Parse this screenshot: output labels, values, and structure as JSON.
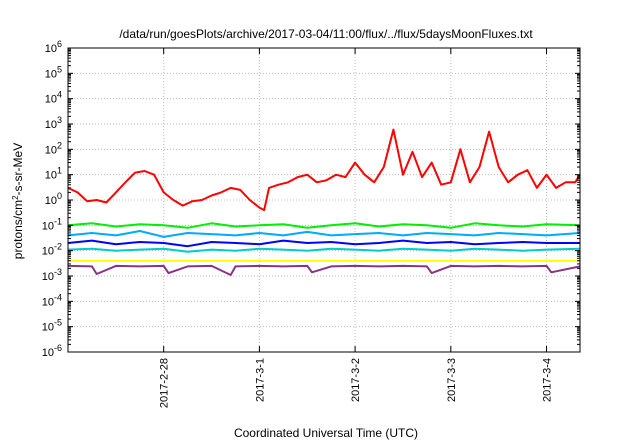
{
  "chart_data": {
    "type": "line",
    "title": "/data/run/goesPlots/archive/2017-03-04/11:00/flux/../flux/5daysMoonFluxes.txt",
    "xlabel": "Coordinated Universal Time (UTC)",
    "ylabel": "protons/cm²-s-sr-MeV",
    "yscale": "log",
    "ylim": [
      1e-06,
      1000000.0
    ],
    "xlim": [
      0.0,
      5.35
    ],
    "x_unit": "days since 2017-02-27 00:00 UTC",
    "grid": true,
    "legend": "none",
    "x_ticks": [
      {
        "x": 1,
        "label": "2017-2-28"
      },
      {
        "x": 2,
        "label": "2017-3-1"
      },
      {
        "x": 3,
        "label": "2017-3-2"
      },
      {
        "x": 4,
        "label": "2017-3-3"
      },
      {
        "x": 5,
        "label": "2017-3-4"
      }
    ],
    "y_ticks": [
      {
        "exp": -6,
        "base": "10",
        "sup": "-6"
      },
      {
        "exp": -5,
        "base": "10",
        "sup": "-5"
      },
      {
        "exp": -4,
        "base": "10",
        "sup": "-4"
      },
      {
        "exp": -3,
        "base": "10",
        "sup": "-3"
      },
      {
        "exp": -2,
        "base": "10",
        "sup": "-2"
      },
      {
        "exp": -1,
        "base": "10",
        "sup": "-1"
      },
      {
        "exp": 0,
        "base": "10",
        "sup": "0"
      },
      {
        "exp": 1,
        "base": "10",
        "sup": "1"
      },
      {
        "exp": 2,
        "base": "10",
        "sup": "2"
      },
      {
        "exp": 3,
        "base": "10",
        "sup": "3"
      },
      {
        "exp": 4,
        "base": "10",
        "sup": "4"
      },
      {
        "exp": 5,
        "base": "10",
        "sup": "5"
      },
      {
        "exp": 6,
        "base": "10",
        "sup": "6"
      }
    ],
    "series": [
      {
        "color": "#ff0000",
        "x": [
          0.0,
          0.1,
          0.2,
          0.3,
          0.4,
          0.5,
          0.6,
          0.7,
          0.8,
          0.9,
          1.0,
          1.1,
          1.2,
          1.3,
          1.4,
          1.5,
          1.6,
          1.7,
          1.8,
          1.9,
          2.0,
          2.05,
          2.1,
          2.2,
          2.3,
          2.4,
          2.5,
          2.6,
          2.7,
          2.8,
          2.9,
          3.0,
          3.1,
          3.2,
          3.3,
          3.4,
          3.5,
          3.6,
          3.7,
          3.8,
          3.9,
          4.0,
          4.1,
          4.2,
          4.3,
          4.4,
          4.5,
          4.6,
          4.7,
          4.8,
          4.9,
          5.0,
          5.1,
          5.2,
          5.3,
          5.35
        ],
        "y": [
          3,
          2,
          0.9,
          1,
          0.8,
          2,
          5,
          12,
          14,
          10,
          2,
          1,
          0.6,
          0.9,
          1,
          1.5,
          2,
          3,
          2.5,
          1,
          0.5,
          0.4,
          3,
          4,
          5,
          8,
          10,
          5,
          6,
          10,
          8,
          30,
          10,
          5,
          20,
          600,
          10,
          80,
          8,
          30,
          4,
          5,
          100,
          5,
          20,
          500,
          20,
          5,
          10,
          15,
          3,
          10,
          3,
          5,
          5,
          10
        ]
      },
      {
        "color": "#00ee00",
        "x": [
          0.0,
          0.25,
          0.5,
          0.75,
          1.0,
          1.25,
          1.5,
          1.75,
          2.0,
          2.25,
          2.5,
          2.75,
          3.0,
          3.25,
          3.5,
          3.75,
          4.0,
          4.25,
          4.5,
          4.75,
          5.0,
          5.35
        ],
        "y": [
          0.1,
          0.12,
          0.09,
          0.11,
          0.1,
          0.08,
          0.12,
          0.09,
          0.1,
          0.11,
          0.08,
          0.1,
          0.12,
          0.09,
          0.11,
          0.1,
          0.08,
          0.12,
          0.1,
          0.09,
          0.11,
          0.1
        ]
      },
      {
        "color": "#00aaff",
        "x": [
          0.0,
          0.25,
          0.5,
          0.75,
          1.0,
          1.25,
          1.5,
          1.75,
          2.0,
          2.25,
          2.5,
          2.75,
          3.0,
          3.25,
          3.5,
          3.75,
          4.0,
          4.25,
          4.5,
          4.75,
          5.0,
          5.35
        ],
        "y": [
          0.04,
          0.05,
          0.04,
          0.06,
          0.035,
          0.05,
          0.045,
          0.04,
          0.05,
          0.04,
          0.055,
          0.04,
          0.045,
          0.05,
          0.04,
          0.05,
          0.045,
          0.04,
          0.05,
          0.045,
          0.04,
          0.05
        ]
      },
      {
        "color": "#0000ff",
        "x": [
          0.0,
          0.25,
          0.5,
          0.75,
          1.0,
          1.25,
          1.5,
          1.75,
          2.0,
          2.25,
          2.5,
          2.75,
          3.0,
          3.25,
          3.5,
          3.75,
          4.0,
          4.25,
          4.5,
          4.75,
          5.0,
          5.35
        ],
        "y": [
          0.02,
          0.025,
          0.018,
          0.022,
          0.02,
          0.015,
          0.022,
          0.02,
          0.018,
          0.025,
          0.02,
          0.022,
          0.018,
          0.02,
          0.025,
          0.02,
          0.022,
          0.018,
          0.02,
          0.022,
          0.02,
          0.02
        ]
      },
      {
        "color": "#00cccc",
        "x": [
          0.0,
          0.25,
          0.5,
          0.75,
          1.0,
          1.25,
          1.5,
          1.75,
          2.0,
          2.25,
          2.5,
          2.75,
          3.0,
          3.25,
          3.5,
          3.75,
          4.0,
          4.25,
          4.5,
          4.75,
          5.0,
          5.35
        ],
        "y": [
          0.011,
          0.012,
          0.01,
          0.011,
          0.012,
          0.009,
          0.011,
          0.01,
          0.012,
          0.011,
          0.01,
          0.012,
          0.011,
          0.01,
          0.012,
          0.011,
          0.01,
          0.012,
          0.011,
          0.01,
          0.011,
          0.012
        ]
      },
      {
        "color": "#ffff00",
        "x": [
          0.0,
          0.5,
          1.0,
          1.5,
          2.0,
          2.5,
          3.0,
          3.5,
          4.0,
          4.5,
          5.0,
          5.35
        ],
        "y": [
          0.004,
          0.004,
          0.004,
          0.004,
          0.004,
          0.004,
          0.004,
          0.004,
          0.004,
          0.004,
          0.004,
          0.004
        ]
      },
      {
        "color": "#883388",
        "x": [
          0.0,
          0.25,
          0.3,
          0.5,
          0.75,
          1.0,
          1.05,
          1.25,
          1.5,
          1.7,
          1.75,
          2.0,
          2.25,
          2.5,
          2.55,
          2.75,
          3.0,
          3.25,
          3.5,
          3.75,
          3.8,
          4.0,
          4.25,
          4.5,
          4.75,
          5.0,
          5.05,
          5.35
        ],
        "y": [
          0.0025,
          0.0024,
          0.0012,
          0.0025,
          0.0024,
          0.0025,
          0.0013,
          0.0024,
          0.0025,
          0.0011,
          0.0024,
          0.0025,
          0.0024,
          0.0025,
          0.0014,
          0.0024,
          0.0025,
          0.0024,
          0.0025,
          0.0024,
          0.0013,
          0.0025,
          0.0024,
          0.0025,
          0.0024,
          0.0025,
          0.0014,
          0.0024
        ]
      }
    ]
  }
}
